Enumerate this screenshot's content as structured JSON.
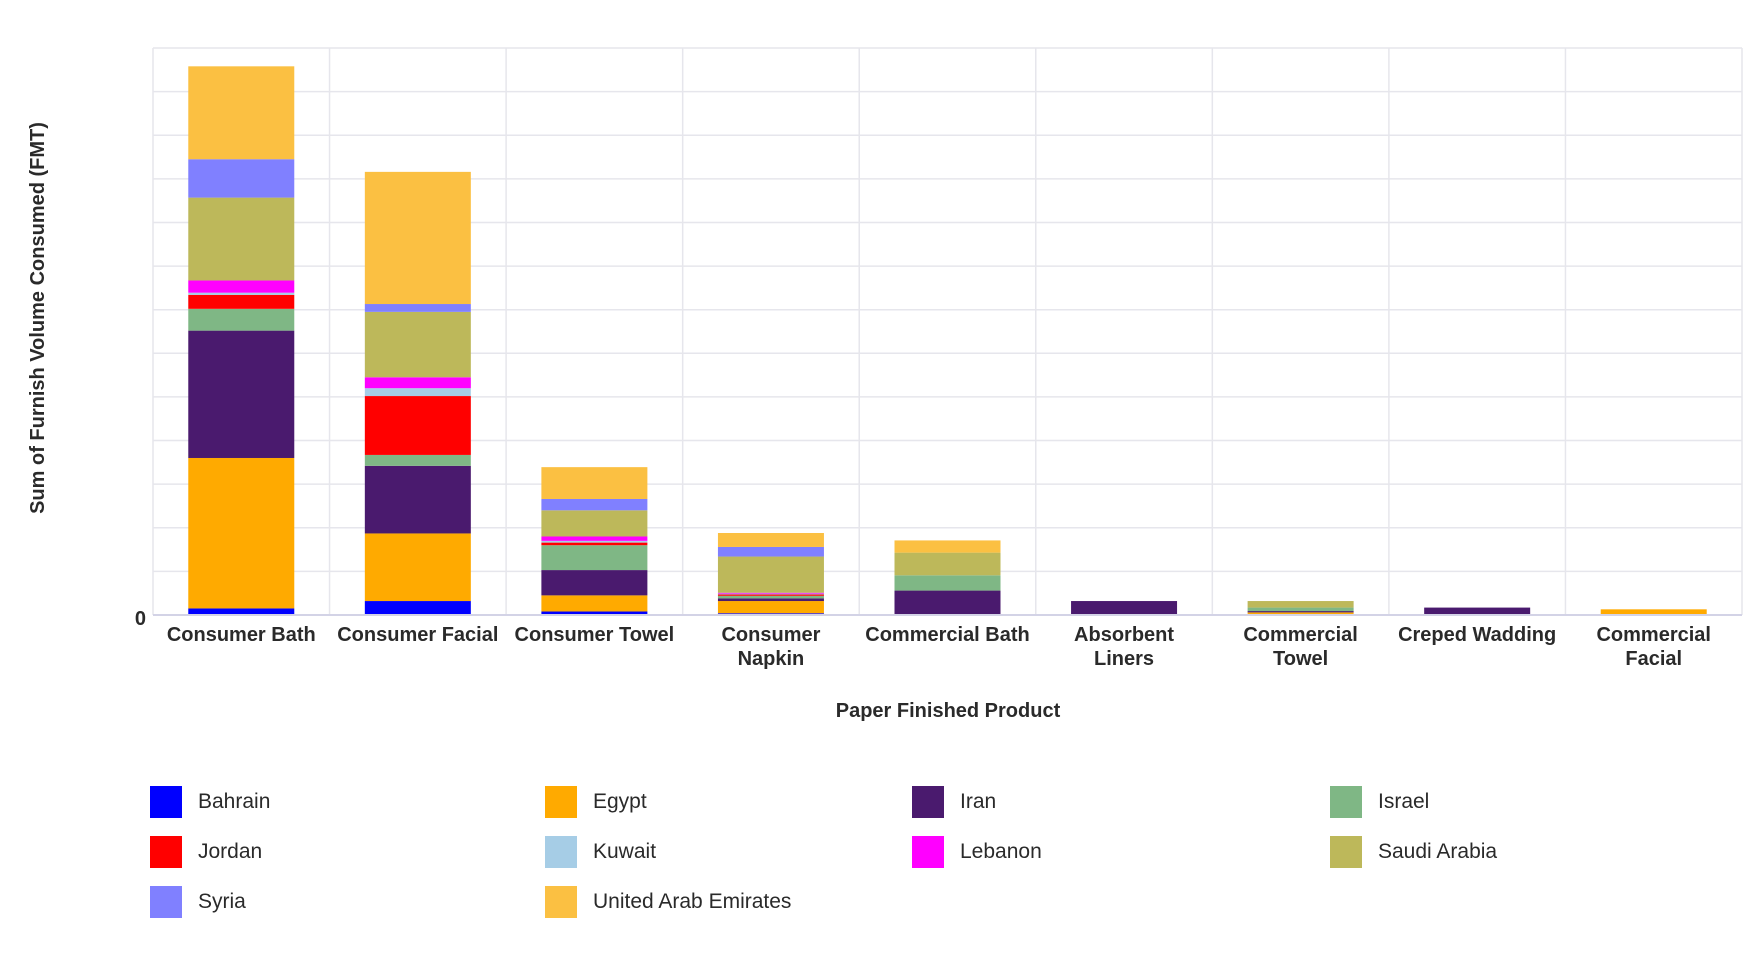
{
  "chart_data": {
    "type": "bar",
    "stacked": true,
    "xlabel": "Paper Finished Product",
    "ylabel": "Sum of Furnish Volume Consumed (FMT)",
    "ytick_labels": [
      "0"
    ],
    "ylim": [
      0,
      1300
    ],
    "grid": true,
    "legend_position": "bottom",
    "categories": [
      "Consumer Bath",
      "Consumer Facial",
      "Consumer Towel",
      "Consumer Napkin",
      "Commercial Bath",
      "Absorbent Liners",
      "Commercial Towel",
      "Creped Wadding",
      "Commercial Facial"
    ],
    "category_lines": [
      [
        "Consumer Bath"
      ],
      [
        "Consumer Facial"
      ],
      [
        "Consumer Towel"
      ],
      [
        "Consumer",
        "Napkin"
      ],
      [
        "Commercial Bath"
      ],
      [
        "Absorbent",
        "Liners"
      ],
      [
        "Commercial",
        "Towel"
      ],
      [
        "Creped Wadding"
      ],
      [
        "Commercial",
        "Facial"
      ]
    ],
    "series": [
      {
        "name": "Bahrain",
        "color": "#0000ff",
        "values": [
          15,
          32,
          8,
          4,
          0,
          0,
          0,
          0,
          0
        ]
      },
      {
        "name": "Egypt",
        "color": "#ffaa00",
        "values": [
          345,
          155,
          37,
          28,
          0,
          0,
          6,
          0,
          13
        ]
      },
      {
        "name": "Iran",
        "color": "#4a1a6e",
        "values": [
          292,
          155,
          58,
          6,
          56,
          32,
          3,
          17,
          0
        ]
      },
      {
        "name": "Israel",
        "color": "#7fb785",
        "values": [
          50,
          25,
          57,
          6,
          35,
          0,
          8,
          0,
          0
        ]
      },
      {
        "name": "Jordan",
        "color": "#ff0000",
        "values": [
          32,
          135,
          6,
          3,
          0,
          0,
          0,
          0,
          0
        ]
      },
      {
        "name": "Kuwait",
        "color": "#a6cde6",
        "values": [
          5,
          18,
          4,
          2,
          0,
          0,
          0,
          0,
          0
        ]
      },
      {
        "name": "Lebanon",
        "color": "#ff00ff",
        "values": [
          28,
          25,
          10,
          2,
          0,
          0,
          0,
          0,
          0
        ]
      },
      {
        "name": "Saudi Arabia",
        "color": "#bdb85a",
        "values": [
          190,
          150,
          60,
          83,
          52,
          0,
          15,
          0,
          0
        ]
      },
      {
        "name": "Syria",
        "color": "#8080ff",
        "values": [
          88,
          18,
          26,
          22,
          0,
          0,
          0,
          0,
          0
        ]
      },
      {
        "name": "United Arab Emirates",
        "color": "#fbc042",
        "values": [
          213,
          303,
          73,
          32,
          28,
          0,
          0,
          0,
          0
        ]
      }
    ]
  }
}
